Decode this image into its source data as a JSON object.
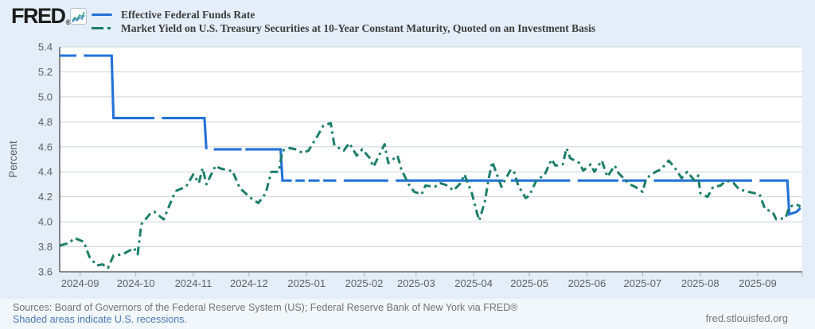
{
  "header": {
    "logo_text": "FRED",
    "logo_registered": "®",
    "icon": "line-chart-icon"
  },
  "legend": {
    "position": "top",
    "items": [
      {
        "label": "Effective Federal Funds Rate",
        "color": "#2272d8",
        "style": "solid"
      },
      {
        "label": "Market Yield on U.S. Treasury Securities at 10-Year Constant Maturity, Quoted on an Investment Basis",
        "color": "#1b7e6b",
        "style": "dash-dot"
      }
    ]
  },
  "chart_data": {
    "type": "line",
    "title": "",
    "xlabel": "",
    "ylabel": "Percent",
    "ylim": [
      3.6,
      5.4
    ],
    "y_tick_labels": [
      "5.4",
      "5.2",
      "5.0",
      "4.8",
      "4.6",
      "4.4",
      "4.2",
      "4.0",
      "3.8",
      "3.6"
    ],
    "x_domain": [
      "2024-08-21",
      "2025-09-25"
    ],
    "x_tick_labels": [
      "2024-09",
      "2024-10",
      "2024-11",
      "2024-12",
      "2025-01",
      "2025-02",
      "2025-03",
      "2025-04",
      "2025-05",
      "2025-06",
      "2025-07",
      "2025-08",
      "2025-09"
    ],
    "grid": "horizontal",
    "plot_bg": "#ffffff",
    "grid_color": "#cdd3d9",
    "axis_color": "#4a4a4a",
    "tick_color": "#a7b1ba",
    "label_color": "#5b6167",
    "series": [
      {
        "name": "Effective Federal Funds Rate",
        "color": "#2272d8",
        "style": "solid",
        "segments": [
          [
            [
              "2024-08-21",
              5.33
            ],
            [
              "2024-08-30",
              5.33
            ]
          ],
          [
            [
              "2024-09-03",
              5.33
            ],
            [
              "2024-09-18",
              5.33
            ],
            [
              "2024-09-19",
              4.83
            ],
            [
              "2024-10-11",
              4.83
            ]
          ],
          [
            [
              "2024-10-15",
              4.83
            ],
            [
              "2024-11-07",
              4.83
            ],
            [
              "2024-11-08",
              4.58
            ]
          ],
          [
            [
              "2024-11-12",
              4.58
            ],
            [
              "2024-11-27",
              4.58
            ]
          ],
          [
            [
              "2024-11-29",
              4.58
            ],
            [
              "2024-12-18",
              4.58
            ],
            [
              "2024-12-19",
              4.33
            ],
            [
              "2024-12-24",
              4.33
            ]
          ],
          [
            [
              "2024-12-26",
              4.33
            ],
            [
              "2024-12-31",
              4.33
            ]
          ],
          [
            [
              "2025-01-02",
              4.33
            ],
            [
              "2025-01-08",
              4.33
            ]
          ],
          [
            [
              "2025-01-10",
              4.33
            ],
            [
              "2025-01-17",
              4.33
            ]
          ],
          [
            [
              "2025-01-21",
              4.33
            ],
            [
              "2025-02-14",
              4.33
            ]
          ],
          [
            [
              "2025-02-18",
              4.33
            ],
            [
              "2025-04-17",
              4.33
            ]
          ],
          [
            [
              "2025-04-21",
              4.33
            ],
            [
              "2025-05-23",
              4.33
            ]
          ],
          [
            [
              "2025-05-27",
              4.33
            ],
            [
              "2025-06-18",
              4.33
            ]
          ],
          [
            [
              "2025-06-20",
              4.33
            ],
            [
              "2025-07-03",
              4.33
            ]
          ],
          [
            [
              "2025-07-07",
              4.33
            ],
            [
              "2025-08-29",
              4.33
            ]
          ],
          [
            [
              "2025-09-02",
              4.33
            ],
            [
              "2025-09-17",
              4.33
            ],
            [
              "2025-09-18",
              4.06
            ],
            [
              "2025-09-22",
              4.08
            ],
            [
              "2025-09-24",
              4.11
            ]
          ]
        ]
      },
      {
        "name": "Market Yield on U.S. Treasury Securities at 10-Year Constant Maturity, Quoted on an Investment Basis",
        "color": "#1b7e6b",
        "style": "dash-dot",
        "points": [
          [
            "2024-08-21",
            3.81
          ],
          [
            "2024-08-26",
            3.83
          ],
          [
            "2024-08-29",
            3.87
          ],
          [
            "2024-09-03",
            3.84
          ],
          [
            "2024-09-06",
            3.72
          ],
          [
            "2024-09-10",
            3.65
          ],
          [
            "2024-09-13",
            3.66
          ],
          [
            "2024-09-16",
            3.63
          ],
          [
            "2024-09-19",
            3.73
          ],
          [
            "2024-09-24",
            3.74
          ],
          [
            "2024-09-30",
            3.79
          ],
          [
            "2024-10-02",
            3.74
          ],
          [
            "2024-10-04",
            3.98
          ],
          [
            "2024-10-09",
            4.07
          ],
          [
            "2024-10-11",
            4.08
          ],
          [
            "2024-10-16",
            4.02
          ],
          [
            "2024-10-21",
            4.2
          ],
          [
            "2024-10-23",
            4.25
          ],
          [
            "2024-10-28",
            4.28
          ],
          [
            "2024-11-01",
            4.38
          ],
          [
            "2024-11-04",
            4.31
          ],
          [
            "2024-11-06",
            4.43
          ],
          [
            "2024-11-08",
            4.3
          ],
          [
            "2024-11-13",
            4.45
          ],
          [
            "2024-11-15",
            4.43
          ],
          [
            "2024-11-20",
            4.41
          ],
          [
            "2024-11-22",
            4.41
          ],
          [
            "2024-11-26",
            4.27
          ],
          [
            "2024-12-02",
            4.19
          ],
          [
            "2024-12-06",
            4.15
          ],
          [
            "2024-12-10",
            4.23
          ],
          [
            "2024-12-13",
            4.4
          ],
          [
            "2024-12-17",
            4.4
          ],
          [
            "2024-12-19",
            4.57
          ],
          [
            "2024-12-23",
            4.59
          ],
          [
            "2024-12-26",
            4.58
          ],
          [
            "2024-12-30",
            4.55
          ],
          [
            "2025-01-02",
            4.57
          ],
          [
            "2025-01-07",
            4.69
          ],
          [
            "2025-01-10",
            4.77
          ],
          [
            "2025-01-14",
            4.79
          ],
          [
            "2025-01-16",
            4.61
          ],
          [
            "2025-01-21",
            4.57
          ],
          [
            "2025-01-24",
            4.63
          ],
          [
            "2025-01-28",
            4.53
          ],
          [
            "2025-01-31",
            4.58
          ],
          [
            "2025-02-04",
            4.51
          ],
          [
            "2025-02-06",
            4.44
          ],
          [
            "2025-02-12",
            4.62
          ],
          [
            "2025-02-14",
            4.47
          ],
          [
            "2025-02-19",
            4.53
          ],
          [
            "2025-02-21",
            4.42
          ],
          [
            "2025-02-25",
            4.3
          ],
          [
            "2025-02-28",
            4.24
          ],
          [
            "2025-03-04",
            4.22
          ],
          [
            "2025-03-06",
            4.29
          ],
          [
            "2025-03-11",
            4.28
          ],
          [
            "2025-03-14",
            4.31
          ],
          [
            "2025-03-18",
            4.29
          ],
          [
            "2025-03-21",
            4.25
          ],
          [
            "2025-03-25",
            4.31
          ],
          [
            "2025-03-27",
            4.38
          ],
          [
            "2025-03-31",
            4.23
          ],
          [
            "2025-04-03",
            4.06
          ],
          [
            "2025-04-04",
            4.01
          ],
          [
            "2025-04-07",
            4.16
          ],
          [
            "2025-04-09",
            4.34
          ],
          [
            "2025-04-11",
            4.48
          ],
          [
            "2025-04-14",
            4.36
          ],
          [
            "2025-04-16",
            4.28
          ],
          [
            "2025-04-21",
            4.42
          ],
          [
            "2025-04-23",
            4.39
          ],
          [
            "2025-04-25",
            4.29
          ],
          [
            "2025-04-29",
            4.19
          ],
          [
            "2025-05-01",
            4.21
          ],
          [
            "2025-05-05",
            4.34
          ],
          [
            "2025-05-09",
            4.37
          ],
          [
            "2025-05-13",
            4.5
          ],
          [
            "2025-05-15",
            4.45
          ],
          [
            "2025-05-19",
            4.46
          ],
          [
            "2025-05-21",
            4.59
          ],
          [
            "2025-05-23",
            4.51
          ],
          [
            "2025-05-28",
            4.47
          ],
          [
            "2025-05-30",
            4.41
          ],
          [
            "2025-06-03",
            4.46
          ],
          [
            "2025-06-05",
            4.4
          ],
          [
            "2025-06-09",
            4.49
          ],
          [
            "2025-06-12",
            4.36
          ],
          [
            "2025-06-16",
            4.45
          ],
          [
            "2025-06-18",
            4.39
          ],
          [
            "2025-06-24",
            4.3
          ],
          [
            "2025-06-27",
            4.28
          ],
          [
            "2025-07-01",
            4.24
          ],
          [
            "2025-07-03",
            4.35
          ],
          [
            "2025-07-08",
            4.4
          ],
          [
            "2025-07-11",
            4.42
          ],
          [
            "2025-07-15",
            4.49
          ],
          [
            "2025-07-18",
            4.44
          ],
          [
            "2025-07-22",
            4.35
          ],
          [
            "2025-07-25",
            4.4
          ],
          [
            "2025-07-29",
            4.33
          ],
          [
            "2025-07-31",
            4.37
          ],
          [
            "2025-08-01",
            4.23
          ],
          [
            "2025-08-05",
            4.2
          ],
          [
            "2025-08-08",
            4.28
          ],
          [
            "2025-08-12",
            4.29
          ],
          [
            "2025-08-15",
            4.33
          ],
          [
            "2025-08-19",
            4.31
          ],
          [
            "2025-08-22",
            4.26
          ],
          [
            "2025-08-27",
            4.24
          ],
          [
            "2025-09-02",
            4.22
          ],
          [
            "2025-09-05",
            4.1
          ],
          [
            "2025-09-09",
            4.08
          ],
          [
            "2025-09-11",
            4.02
          ],
          [
            "2025-09-16",
            4.03
          ],
          [
            "2025-09-18",
            4.12
          ],
          [
            "2025-09-22",
            4.14
          ],
          [
            "2025-09-24",
            4.12
          ]
        ]
      }
    ]
  },
  "footer": {
    "sources": "Sources: Board of Governors of the Federal Reserve System (US); Federal Reserve Bank of New York via FRED®",
    "shaded_note": "Shaded areas indicate U.S. recessions.",
    "site_link": "fred.stlouisfed.org"
  }
}
